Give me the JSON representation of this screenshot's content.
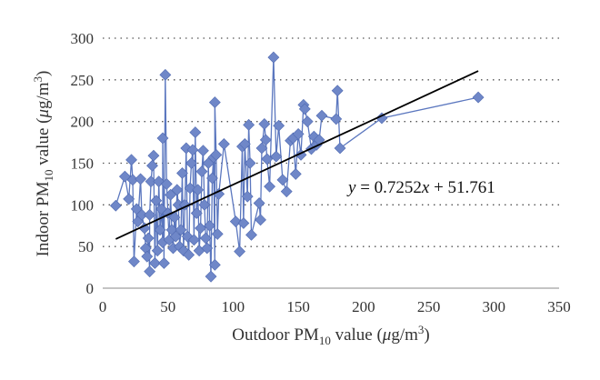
{
  "chart_data": {
    "type": "scatter",
    "title": "",
    "xlabel": {
      "pre": "Outdoor PM",
      "sub": "10",
      "post": " value (",
      "mu": "μ",
      "unit": "g/m",
      "sup": "3",
      "close": ")"
    },
    "ylabel": {
      "pre": "Indoor PM",
      "sub": "10",
      "post": " value (",
      "mu": "μ",
      "unit": "g/m",
      "sup": "3",
      "close": ")"
    },
    "xlim": [
      0,
      350
    ],
    "ylim": [
      0,
      300
    ],
    "x_ticks": [
      0,
      50,
      100,
      150,
      200,
      250,
      300,
      350
    ],
    "y_ticks": [
      0,
      50,
      100,
      150,
      200,
      250,
      300
    ],
    "grid": {
      "horizontal": true,
      "style": "dotted"
    },
    "series_color": "#5b77bf",
    "marker_color": "#6f87c8",
    "trendline_color": "#000000",
    "trendline": {
      "slope": 0.7252,
      "intercept": 51.761,
      "x_range": [
        10,
        288
      ]
    },
    "equation": {
      "y": "y",
      "eq": " = 0.7252",
      "x": "x",
      "rest": " + 51.761"
    },
    "series": [
      {
        "marker": "diamond",
        "points": [
          [
            10,
            99
          ],
          [
            17,
            134
          ],
          [
            20,
            107
          ],
          [
            22,
            154
          ],
          [
            23,
            130
          ],
          [
            24,
            32
          ],
          [
            26,
            95
          ],
          [
            27,
            80
          ],
          [
            29,
            131
          ],
          [
            30,
            88
          ],
          [
            32,
            72
          ],
          [
            33,
            48
          ],
          [
            34,
            38
          ],
          [
            35,
            60
          ],
          [
            36,
            20
          ],
          [
            36,
            88
          ],
          [
            37,
            128
          ],
          [
            38,
            147
          ],
          [
            39,
            159
          ],
          [
            40,
            30
          ],
          [
            41,
            105
          ],
          [
            42,
            45
          ],
          [
            43,
            128
          ],
          [
            44,
            70
          ],
          [
            45,
            95
          ],
          [
            46,
            55
          ],
          [
            46,
            180
          ],
          [
            47,
            30
          ],
          [
            48,
            256
          ],
          [
            49,
            125
          ],
          [
            50,
            90
          ],
          [
            51,
            58
          ],
          [
            52,
            112
          ],
          [
            53,
            70
          ],
          [
            54,
            48
          ],
          [
            55,
            85
          ],
          [
            56,
            62
          ],
          [
            57,
            118
          ],
          [
            58,
            100
          ],
          [
            59,
            50
          ],
          [
            60,
            70
          ],
          [
            61,
            138
          ],
          [
            62,
            45
          ],
          [
            63,
            100
          ],
          [
            64,
            168
          ],
          [
            65,
            62
          ],
          [
            66,
            40
          ],
          [
            67,
            120
          ],
          [
            68,
            150
          ],
          [
            69,
            166
          ],
          [
            70,
            58
          ],
          [
            71,
            187
          ],
          [
            72,
            90
          ],
          [
            73,
            118
          ],
          [
            74,
            45
          ],
          [
            75,
            72
          ],
          [
            76,
            140
          ],
          [
            77,
            165
          ],
          [
            78,
            100
          ],
          [
            79,
            60
          ],
          [
            80,
            48
          ],
          [
            81,
            150
          ],
          [
            82,
            75
          ],
          [
            83,
            14
          ],
          [
            84,
            132
          ],
          [
            85,
            157
          ],
          [
            86,
            28
          ],
          [
            86,
            223
          ],
          [
            87,
            160
          ],
          [
            88,
            65
          ],
          [
            89,
            113
          ],
          [
            93,
            173
          ],
          [
            102,
            80
          ],
          [
            105,
            44
          ],
          [
            107,
            170
          ],
          [
            108,
            78
          ],
          [
            109,
            173
          ],
          [
            111,
            110
          ],
          [
            112,
            196
          ],
          [
            113,
            150
          ],
          [
            114,
            64
          ],
          [
            120,
            102
          ],
          [
            121,
            82
          ],
          [
            122,
            168
          ],
          [
            124,
            197
          ],
          [
            125,
            178
          ],
          [
            126,
            155
          ],
          [
            128,
            122
          ],
          [
            131,
            277
          ],
          [
            133,
            158
          ],
          [
            135,
            195
          ],
          [
            138,
            130
          ],
          [
            141,
            116
          ],
          [
            144,
            177
          ],
          [
            146,
            180
          ],
          [
            148,
            137
          ],
          [
            150,
            185
          ],
          [
            152,
            160
          ],
          [
            154,
            220
          ],
          [
            155,
            215
          ],
          [
            157,
            200
          ],
          [
            160,
            167
          ],
          [
            162,
            182
          ],
          [
            164,
            172
          ],
          [
            166,
            178
          ],
          [
            168,
            207
          ],
          [
            179,
            203
          ],
          [
            180,
            237
          ],
          [
            182,
            168
          ],
          [
            214,
            204
          ],
          [
            288,
            229
          ]
        ]
      }
    ]
  }
}
